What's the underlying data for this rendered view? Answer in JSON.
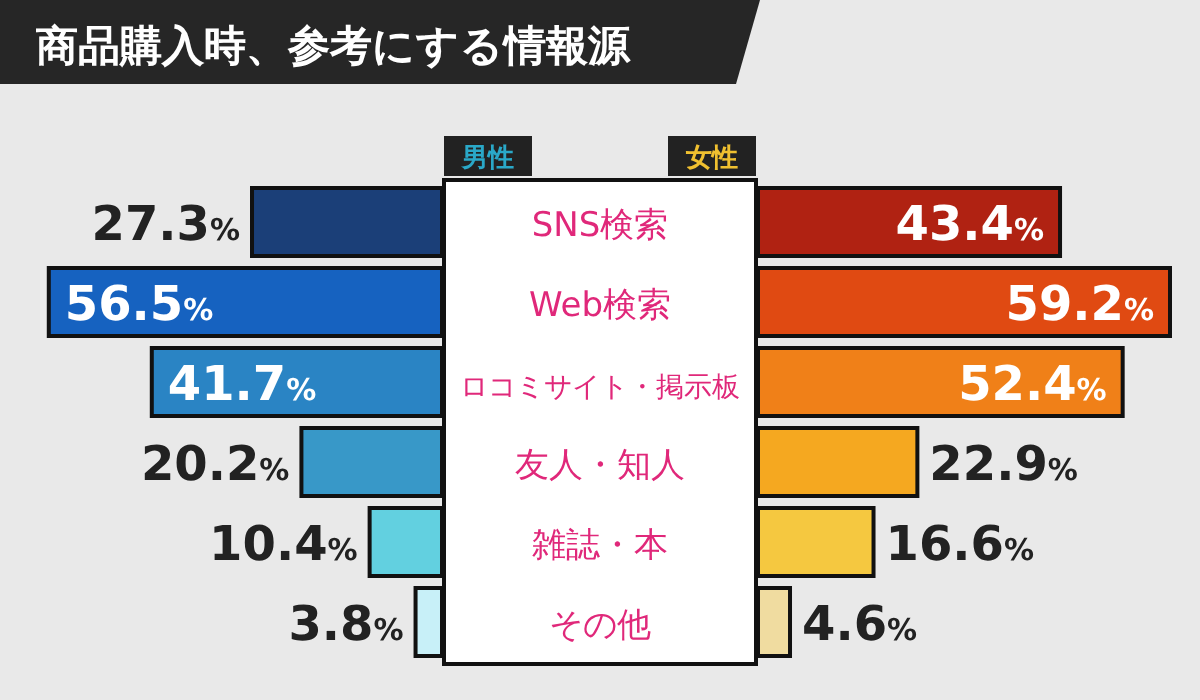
{
  "chart_data": [
    {
      "type": "bar",
      "orientation": "horizontal",
      "title": "商品購入時、参考にする情報源",
      "categories": [
        "SNS検索",
        "Web検索",
        "ロコミサイト・掲示板",
        "友人・知人",
        "雑誌・本",
        "その他"
      ],
      "series": [
        {
          "name": "男性",
          "color": "#2aa8c8",
          "colors": [
            "#1b3f78",
            "#1662c0",
            "#2a84c4",
            "#3898c8",
            "#62d0e0",
            "#c8f0f8"
          ],
          "values": [
            27.3,
            56.5,
            41.7,
            20.2,
            10.4,
            3.8
          ],
          "value_labels": [
            "27.3%",
            "56.5%",
            "41.7%",
            "20.2%",
            "10.4%",
            "3.8%"
          ]
        }
      ],
      "legend": "top"
    },
    {
      "type": "bar",
      "orientation": "horizontal",
      "categories": [
        null,
        null,
        null,
        null,
        null,
        null
      ],
      "series": [
        {
          "name": "女性",
          "color": "#f0c030",
          "colors": [
            "#b02212",
            "#e04a12",
            "#f08018",
            "#f5a820",
            "#f5c840",
            "#f0dca0"
          ],
          "values": [
            43.4,
            59.2,
            52.4,
            22.9,
            16.6,
            4.6
          ],
          "value_labels": [
            "43.4%",
            "59.2%",
            "52.4%",
            "22.9%",
            "16.6%",
            "4.6%"
          ]
        }
      ],
      "legend": "top"
    }
  ]
}
